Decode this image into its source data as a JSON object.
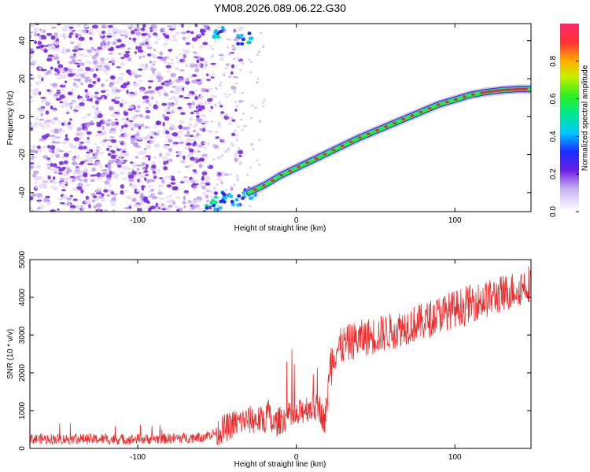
{
  "title": "YM08.2026.089.06.22.G30",
  "chart_data": [
    {
      "type": "heatmap",
      "name": "spectrogram",
      "xlabel": "Height of straight line (km)",
      "ylabel": "Frequency (Hz)",
      "xlim": [
        -168,
        148
      ],
      "ylim": [
        -50,
        49
      ],
      "xticks": [
        -100,
        0,
        100
      ],
      "yticks": [
        -40,
        -20,
        0,
        20,
        40
      ],
      "colorbar": {
        "label": "Normalized spectral amplitude",
        "range": [
          0,
          1
        ],
        "ticks": [
          "0.0",
          "0.2",
          "0.4",
          "0.6",
          "0.8"
        ],
        "tick_values": [
          0.0,
          0.2,
          0.4,
          0.6,
          0.8
        ]
      },
      "signal_track": {
        "description": "main frequency trace (Hz) vs height (km)",
        "x": [
          -30,
          -20,
          -10,
          0,
          10,
          20,
          30,
          40,
          50,
          60,
          70,
          80,
          90,
          100,
          110,
          120,
          130,
          140,
          148
        ],
        "y": [
          -40,
          -36,
          -31,
          -27,
          -23,
          -19,
          -15,
          -11,
          -7.5,
          -4,
          -0.5,
          3,
          6.5,
          9,
          11.5,
          13,
          14,
          14.5,
          14.5
        ]
      },
      "noise_region": {
        "x": [
          -168,
          -55
        ],
        "y": [
          -50,
          49
        ]
      }
    },
    {
      "type": "line",
      "name": "snr",
      "xlabel": "Height of straight line (km)",
      "ylabel": "SNR (10 * v/v)",
      "xlim": [
        -168,
        148
      ],
      "ylim": [
        0,
        5000
      ],
      "xticks": [
        -100,
        0,
        100
      ],
      "yticks": [
        0,
        1000,
        2000,
        3000,
        4000,
        5000
      ],
      "color": "#ee2a2a",
      "x": [
        -168,
        -140,
        -110,
        -80,
        -60,
        -50,
        -40,
        -30,
        -20,
        -18,
        -15,
        -10,
        -5,
        0,
        5,
        10,
        15,
        18,
        20,
        22,
        25,
        30,
        40,
        50,
        60,
        70,
        80,
        90,
        100,
        110,
        120,
        130,
        140,
        148
      ],
      "y": [
        250,
        250,
        240,
        260,
        300,
        420,
        650,
        750,
        750,
        1000,
        600,
        750,
        850,
        800,
        1050,
        1100,
        1050,
        700,
        1500,
        2300,
        2600,
        2750,
        2900,
        3000,
        3100,
        3250,
        3350,
        3550,
        3700,
        3850,
        3950,
        4100,
        4250,
        4400
      ]
    }
  ]
}
